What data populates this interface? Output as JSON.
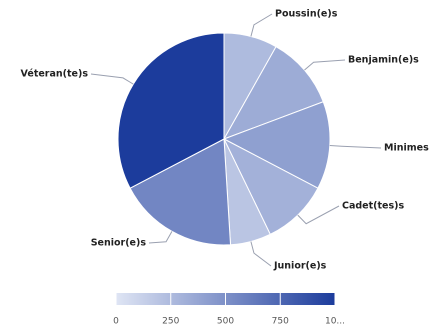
{
  "chart_data": {
    "type": "pie",
    "categories": [
      "Poussin(e)s",
      "Benjamin(e)s",
      "Minimes",
      "Cadet(tes)s",
      "Junior(e)s",
      "Senior(e)s",
      "Véteran(te)s"
    ],
    "values": [
      250,
      340,
      410,
      310,
      190,
      560,
      1000
    ],
    "colorbar": {
      "lim": [
        0,
        1000
      ],
      "ticks": [
        0,
        250,
        500,
        750,
        {
          "value": 1000,
          "label": "10..."
        }
      ],
      "colors": [
        "#dfe5f4",
        "#1c3c9c"
      ]
    }
  }
}
